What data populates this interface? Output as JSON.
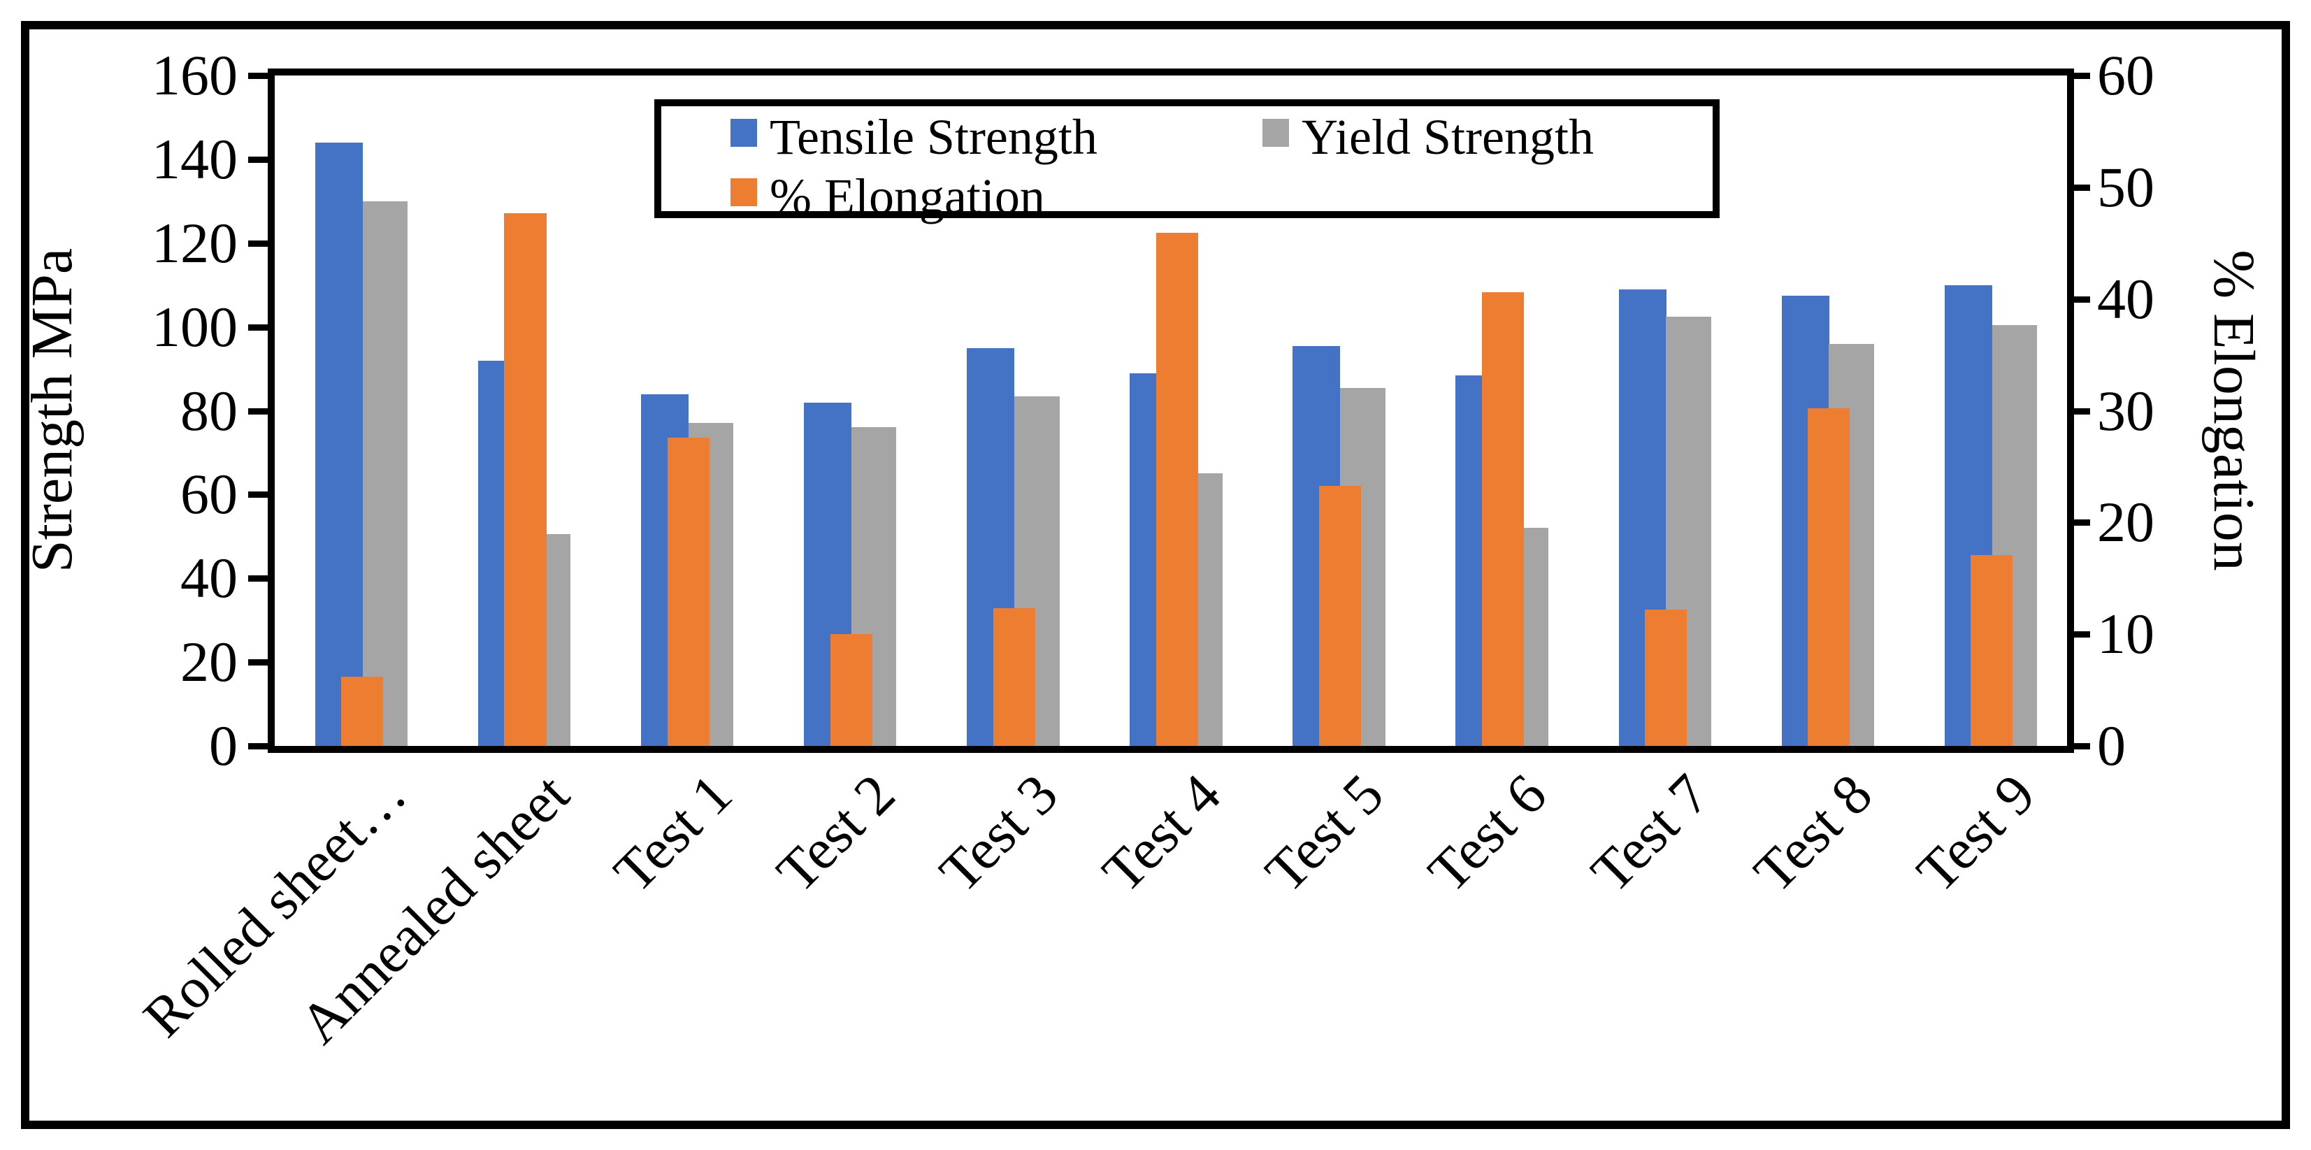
{
  "figure": {
    "background": "#ffffff",
    "border_color": "#000000"
  },
  "chart_data": {
    "type": "bar",
    "title": "",
    "categories": [
      "Rolled sheet…",
      "Annealed sheet",
      "Test 1",
      "Test 2",
      "Test 3",
      "Test 4",
      "Test 5",
      "Test 6",
      "Test 7",
      "Test 8",
      "Test 9"
    ],
    "series": [
      {
        "name": "Tensile Strength",
        "axis": "left",
        "color": "#4472C4",
        "values": [
          144,
          92,
          84,
          82,
          95,
          89,
          95.5,
          88.5,
          109,
          107.5,
          110
        ]
      },
      {
        "name": "Yield Strength",
        "axis": "left",
        "color": "#A5A5A5",
        "values": [
          130,
          50.5,
          77,
          76,
          83.5,
          65,
          85.5,
          52,
          102.5,
          96,
          100.5
        ]
      },
      {
        "name": "% Elongation",
        "axis": "right",
        "color": "#ED7D31",
        "values": [
          6.2,
          47.7,
          27.6,
          10,
          12.3,
          45.9,
          23.3,
          40.6,
          12.2,
          30.2,
          17.1
        ]
      }
    ],
    "left_axis": {
      "label": "Strength MPa",
      "min": 0,
      "max": 160,
      "step": 20,
      "ticks": [
        160,
        140,
        120,
        100,
        80,
        60,
        40,
        20,
        0
      ]
    },
    "right_axis": {
      "label": "% Elongation",
      "min": 0,
      "max": 60,
      "step": 10,
      "ticks": [
        60,
        50,
        40,
        30,
        20,
        10,
        0
      ]
    },
    "legend": {
      "position": "top-inside",
      "border": true,
      "items": [
        "Tensile Strength",
        "Yield Strength",
        "% Elongation"
      ]
    },
    "grid": false
  }
}
